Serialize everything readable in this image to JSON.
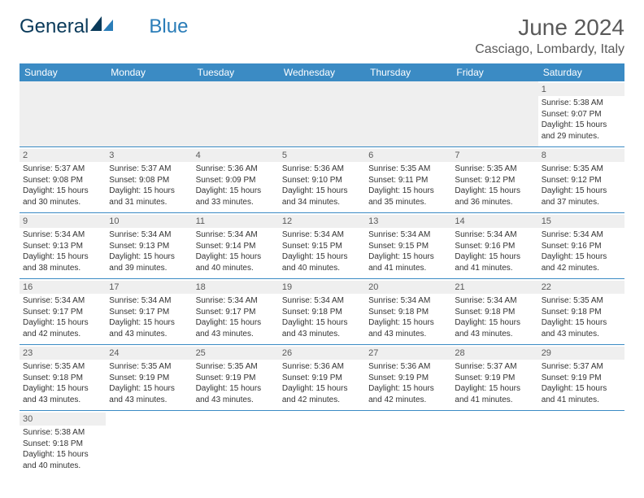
{
  "logo": {
    "part1": "General",
    "part2": "Blue"
  },
  "title": "June 2024",
  "location": "Casciago, Lombardy, Italy",
  "weekdays": [
    "Sunday",
    "Monday",
    "Tuesday",
    "Wednesday",
    "Thursday",
    "Friday",
    "Saturday"
  ],
  "colors": {
    "header_bg": "#3b8bc4",
    "header_text": "#ffffff",
    "daynum_bg": "#efefef",
    "row_divider": "#3b8bc4",
    "title_color": "#5a5a5a",
    "logo_primary": "#0a3a5a",
    "logo_accent": "#2a7db8"
  },
  "weeks": [
    [
      null,
      null,
      null,
      null,
      null,
      null,
      {
        "n": "1",
        "sr": "Sunrise: 5:38 AM",
        "ss": "Sunset: 9:07 PM",
        "d1": "Daylight: 15 hours",
        "d2": "and 29 minutes."
      }
    ],
    [
      {
        "n": "2",
        "sr": "Sunrise: 5:37 AM",
        "ss": "Sunset: 9:08 PM",
        "d1": "Daylight: 15 hours",
        "d2": "and 30 minutes."
      },
      {
        "n": "3",
        "sr": "Sunrise: 5:37 AM",
        "ss": "Sunset: 9:08 PM",
        "d1": "Daylight: 15 hours",
        "d2": "and 31 minutes."
      },
      {
        "n": "4",
        "sr": "Sunrise: 5:36 AM",
        "ss": "Sunset: 9:09 PM",
        "d1": "Daylight: 15 hours",
        "d2": "and 33 minutes."
      },
      {
        "n": "5",
        "sr": "Sunrise: 5:36 AM",
        "ss": "Sunset: 9:10 PM",
        "d1": "Daylight: 15 hours",
        "d2": "and 34 minutes."
      },
      {
        "n": "6",
        "sr": "Sunrise: 5:35 AM",
        "ss": "Sunset: 9:11 PM",
        "d1": "Daylight: 15 hours",
        "d2": "and 35 minutes."
      },
      {
        "n": "7",
        "sr": "Sunrise: 5:35 AM",
        "ss": "Sunset: 9:12 PM",
        "d1": "Daylight: 15 hours",
        "d2": "and 36 minutes."
      },
      {
        "n": "8",
        "sr": "Sunrise: 5:35 AM",
        "ss": "Sunset: 9:12 PM",
        "d1": "Daylight: 15 hours",
        "d2": "and 37 minutes."
      }
    ],
    [
      {
        "n": "9",
        "sr": "Sunrise: 5:34 AM",
        "ss": "Sunset: 9:13 PM",
        "d1": "Daylight: 15 hours",
        "d2": "and 38 minutes."
      },
      {
        "n": "10",
        "sr": "Sunrise: 5:34 AM",
        "ss": "Sunset: 9:13 PM",
        "d1": "Daylight: 15 hours",
        "d2": "and 39 minutes."
      },
      {
        "n": "11",
        "sr": "Sunrise: 5:34 AM",
        "ss": "Sunset: 9:14 PM",
        "d1": "Daylight: 15 hours",
        "d2": "and 40 minutes."
      },
      {
        "n": "12",
        "sr": "Sunrise: 5:34 AM",
        "ss": "Sunset: 9:15 PM",
        "d1": "Daylight: 15 hours",
        "d2": "and 40 minutes."
      },
      {
        "n": "13",
        "sr": "Sunrise: 5:34 AM",
        "ss": "Sunset: 9:15 PM",
        "d1": "Daylight: 15 hours",
        "d2": "and 41 minutes."
      },
      {
        "n": "14",
        "sr": "Sunrise: 5:34 AM",
        "ss": "Sunset: 9:16 PM",
        "d1": "Daylight: 15 hours",
        "d2": "and 41 minutes."
      },
      {
        "n": "15",
        "sr": "Sunrise: 5:34 AM",
        "ss": "Sunset: 9:16 PM",
        "d1": "Daylight: 15 hours",
        "d2": "and 42 minutes."
      }
    ],
    [
      {
        "n": "16",
        "sr": "Sunrise: 5:34 AM",
        "ss": "Sunset: 9:17 PM",
        "d1": "Daylight: 15 hours",
        "d2": "and 42 minutes."
      },
      {
        "n": "17",
        "sr": "Sunrise: 5:34 AM",
        "ss": "Sunset: 9:17 PM",
        "d1": "Daylight: 15 hours",
        "d2": "and 43 minutes."
      },
      {
        "n": "18",
        "sr": "Sunrise: 5:34 AM",
        "ss": "Sunset: 9:17 PM",
        "d1": "Daylight: 15 hours",
        "d2": "and 43 minutes."
      },
      {
        "n": "19",
        "sr": "Sunrise: 5:34 AM",
        "ss": "Sunset: 9:18 PM",
        "d1": "Daylight: 15 hours",
        "d2": "and 43 minutes."
      },
      {
        "n": "20",
        "sr": "Sunrise: 5:34 AM",
        "ss": "Sunset: 9:18 PM",
        "d1": "Daylight: 15 hours",
        "d2": "and 43 minutes."
      },
      {
        "n": "21",
        "sr": "Sunrise: 5:34 AM",
        "ss": "Sunset: 9:18 PM",
        "d1": "Daylight: 15 hours",
        "d2": "and 43 minutes."
      },
      {
        "n": "22",
        "sr": "Sunrise: 5:35 AM",
        "ss": "Sunset: 9:18 PM",
        "d1": "Daylight: 15 hours",
        "d2": "and 43 minutes."
      }
    ],
    [
      {
        "n": "23",
        "sr": "Sunrise: 5:35 AM",
        "ss": "Sunset: 9:18 PM",
        "d1": "Daylight: 15 hours",
        "d2": "and 43 minutes."
      },
      {
        "n": "24",
        "sr": "Sunrise: 5:35 AM",
        "ss": "Sunset: 9:19 PM",
        "d1": "Daylight: 15 hours",
        "d2": "and 43 minutes."
      },
      {
        "n": "25",
        "sr": "Sunrise: 5:35 AM",
        "ss": "Sunset: 9:19 PM",
        "d1": "Daylight: 15 hours",
        "d2": "and 43 minutes."
      },
      {
        "n": "26",
        "sr": "Sunrise: 5:36 AM",
        "ss": "Sunset: 9:19 PM",
        "d1": "Daylight: 15 hours",
        "d2": "and 42 minutes."
      },
      {
        "n": "27",
        "sr": "Sunrise: 5:36 AM",
        "ss": "Sunset: 9:19 PM",
        "d1": "Daylight: 15 hours",
        "d2": "and 42 minutes."
      },
      {
        "n": "28",
        "sr": "Sunrise: 5:37 AM",
        "ss": "Sunset: 9:19 PM",
        "d1": "Daylight: 15 hours",
        "d2": "and 41 minutes."
      },
      {
        "n": "29",
        "sr": "Sunrise: 5:37 AM",
        "ss": "Sunset: 9:19 PM",
        "d1": "Daylight: 15 hours",
        "d2": "and 41 minutes."
      }
    ],
    [
      {
        "n": "30",
        "sr": "Sunrise: 5:38 AM",
        "ss": "Sunset: 9:18 PM",
        "d1": "Daylight: 15 hours",
        "d2": "and 40 minutes."
      },
      null,
      null,
      null,
      null,
      null,
      null
    ]
  ]
}
